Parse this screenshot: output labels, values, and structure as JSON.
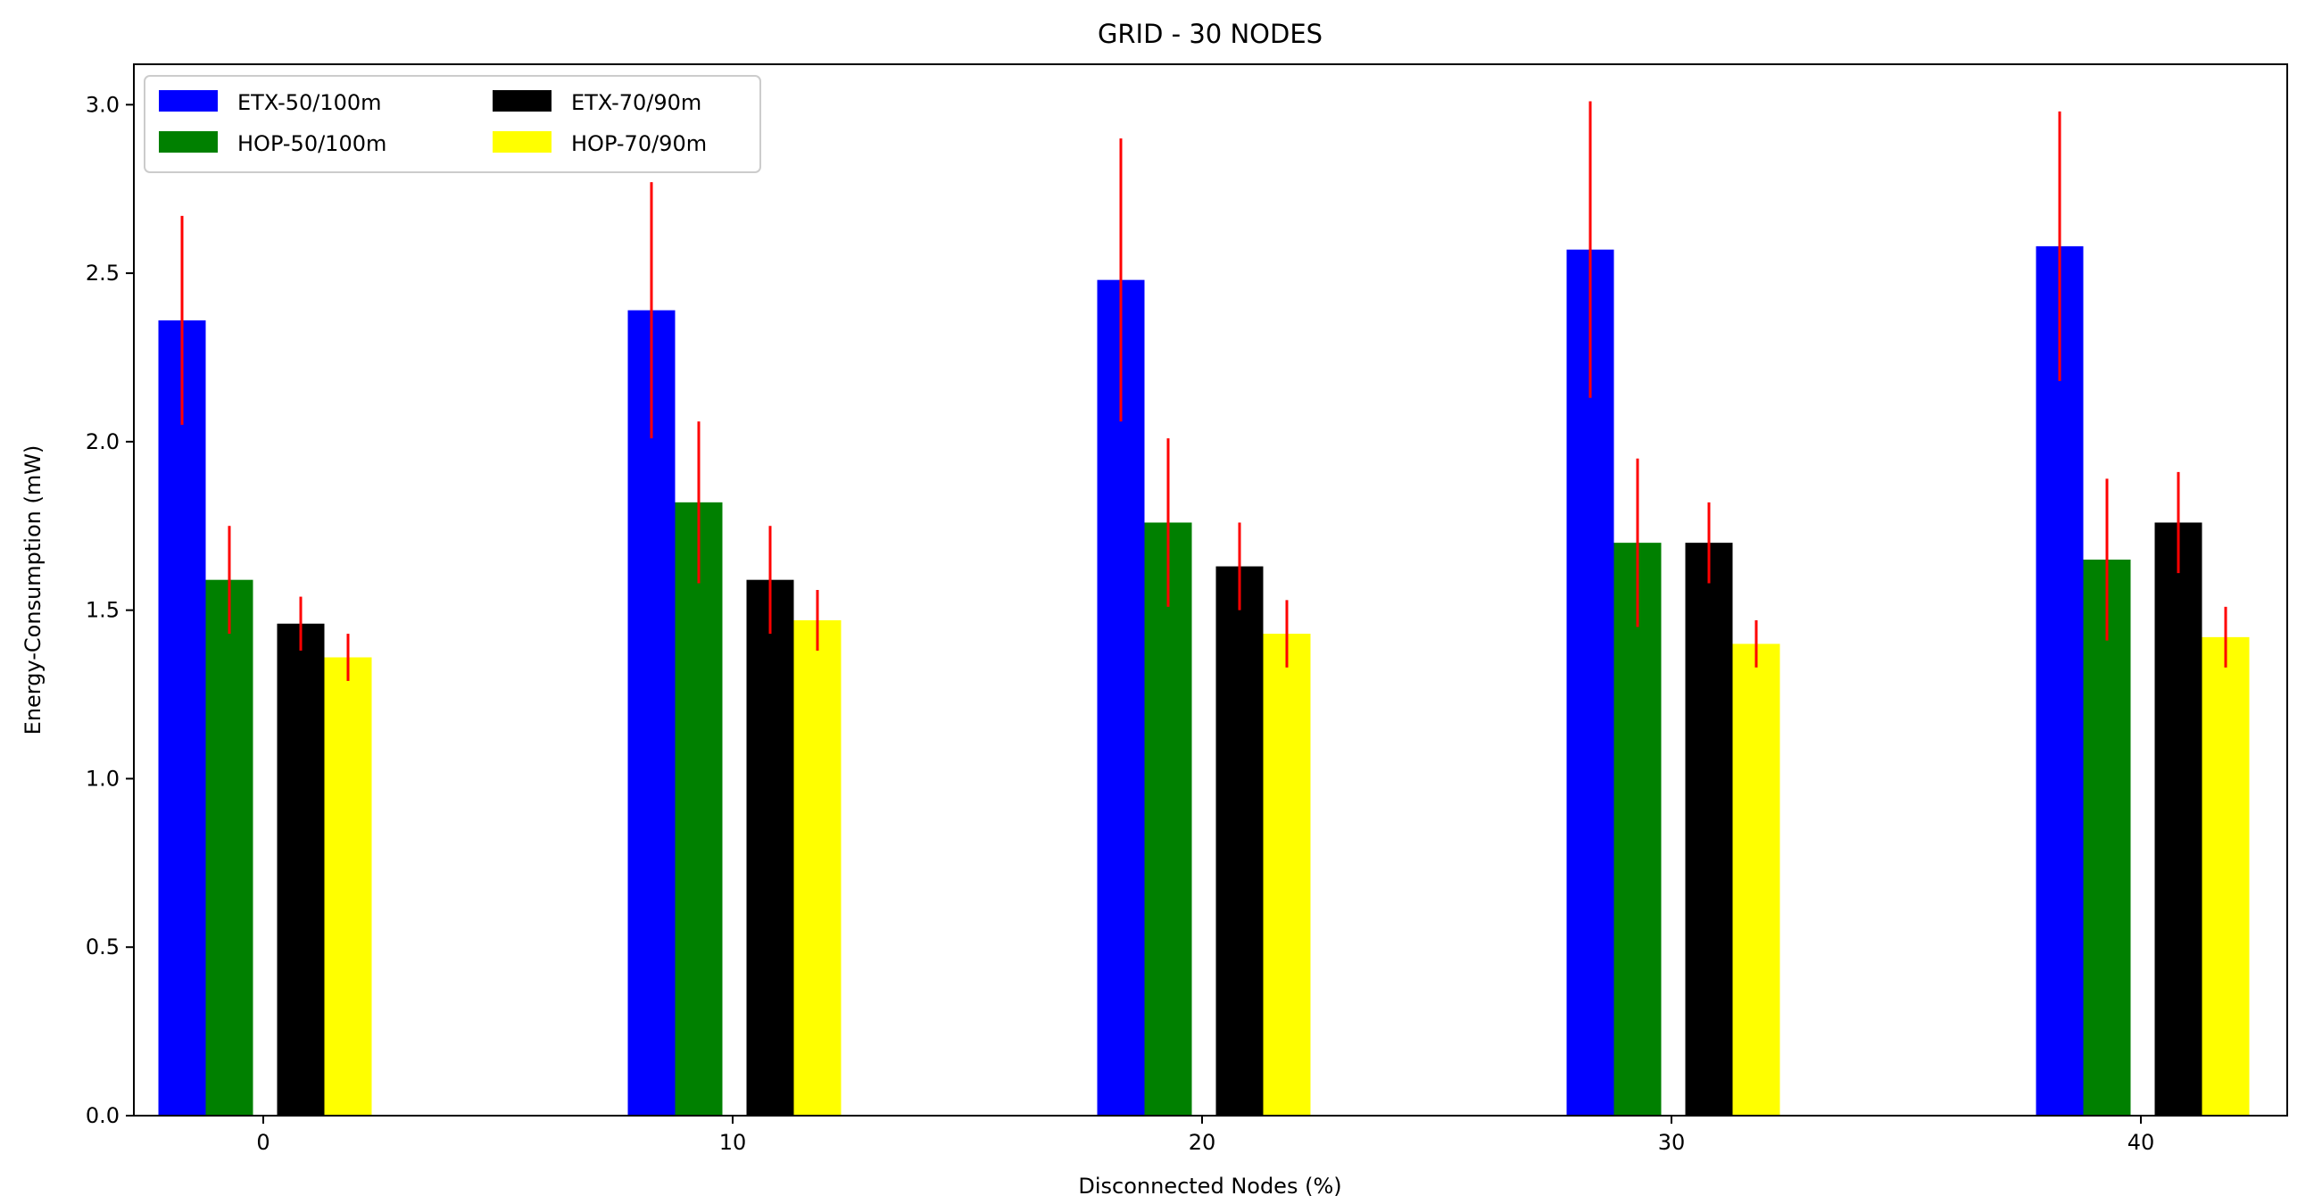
{
  "chart_data": {
    "type": "bar",
    "title": "GRID - 30 NODES",
    "xlabel": "Disconnected Nodes (%)",
    "ylabel": "Energy-Consumption (mW)",
    "ylim": [
      0,
      3.12
    ],
    "yticks": [
      "0.0",
      "0.5",
      "1.0",
      "1.5",
      "2.0",
      "2.5",
      "3.0"
    ],
    "categories": [
      "0",
      "10",
      "20",
      "30",
      "40"
    ],
    "grid": false,
    "legend_position": "top-left",
    "error_color": "#ff0000",
    "series": [
      {
        "name": "ETX-50/100m",
        "color": "#0000ff",
        "values": [
          2.36,
          2.39,
          2.48,
          2.57,
          2.58
        ],
        "errors": [
          0.31,
          0.38,
          0.42,
          0.44,
          0.4
        ]
      },
      {
        "name": "HOP-50/100m",
        "color": "#008000",
        "values": [
          1.59,
          1.82,
          1.76,
          1.7,
          1.65
        ],
        "errors": [
          0.16,
          0.24,
          0.25,
          0.25,
          0.24
        ]
      },
      {
        "name": "ETX-70/90m",
        "color": "#000000",
        "values": [
          1.46,
          1.59,
          1.63,
          1.7,
          1.76
        ],
        "errors": [
          0.08,
          0.16,
          0.13,
          0.12,
          0.15
        ]
      },
      {
        "name": "HOP-70/90m",
        "color": "#ffff00",
        "values": [
          1.36,
          1.47,
          1.43,
          1.4,
          1.42
        ],
        "errors": [
          0.07,
          0.09,
          0.1,
          0.07,
          0.09
        ]
      }
    ]
  }
}
